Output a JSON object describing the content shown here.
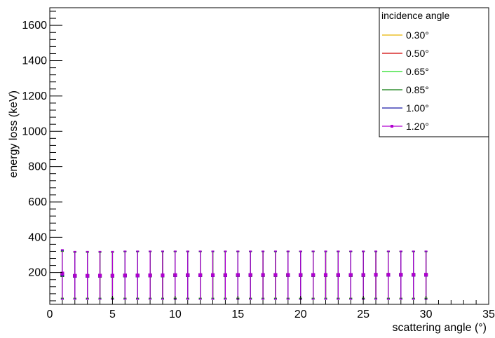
{
  "chart_data": {
    "type": "scatter",
    "xlabel": "scattering angle (°)",
    "ylabel": "energy loss (keV)",
    "xlim": [
      0,
      35
    ],
    "ylim": [
      20,
      1700
    ],
    "x_ticks": [
      "0",
      "5",
      "10",
      "15",
      "20",
      "25",
      "30",
      "35"
    ],
    "y_ticks": [
      "200",
      "400",
      "600",
      "800",
      "1000",
      "1200",
      "1400",
      "1600"
    ],
    "legend": {
      "title": "incidence angle",
      "placement": "top-right",
      "entries": [
        "0.30°",
        "0.50°",
        "0.65°",
        "0.85°",
        "1.00°",
        "1.20°"
      ]
    },
    "x": [
      1,
      2,
      3,
      4,
      5,
      6,
      7,
      8,
      9,
      10,
      11,
      12,
      13,
      14,
      15,
      16,
      17,
      18,
      19,
      20,
      21,
      22,
      23,
      24,
      25,
      26,
      27,
      28,
      29,
      30
    ],
    "series": [
      {
        "name": "0.30°",
        "color": "#e8b400",
        "y": [
          185,
          181,
          181,
          182,
          182,
          183,
          183,
          184,
          184,
          185,
          185,
          185,
          185,
          185,
          186,
          186,
          186,
          186,
          186,
          186,
          186,
          186,
          186,
          186,
          186,
          187,
          187,
          187,
          187,
          187
        ],
        "y_low": [
          55,
          55,
          55,
          55,
          55,
          55,
          55,
          55,
          55,
          55,
          55,
          55,
          55,
          55,
          55,
          55,
          55,
          55,
          55,
          55,
          55,
          55,
          55,
          55,
          55,
          55,
          55,
          55,
          55,
          55
        ],
        "y_high": [
          320,
          315,
          315,
          315,
          315,
          318,
          318,
          318,
          318,
          318,
          318,
          318,
          318,
          318,
          318,
          318,
          318,
          318,
          318,
          318,
          318,
          318,
          318,
          318,
          318,
          318,
          318,
          318,
          318,
          318
        ]
      },
      {
        "name": "0.50°",
        "color": "#d00000",
        "y": [
          185,
          181,
          181,
          182,
          182,
          183,
          183,
          184,
          184,
          185,
          185,
          185,
          185,
          185,
          186,
          186,
          186,
          186,
          186,
          186,
          186,
          186,
          186,
          186,
          186,
          187,
          187,
          187,
          187,
          187
        ],
        "y_low": [
          55,
          55,
          55,
          55,
          55,
          55,
          55,
          55,
          55,
          55,
          55,
          55,
          55,
          55,
          55,
          55,
          55,
          55,
          55,
          55,
          55,
          55,
          55,
          55,
          55,
          55,
          55,
          55,
          55,
          55
        ],
        "y_high": [
          320,
          315,
          315,
          315,
          315,
          318,
          318,
          318,
          318,
          318,
          318,
          318,
          318,
          318,
          318,
          318,
          318,
          318,
          318,
          318,
          318,
          318,
          318,
          318,
          318,
          318,
          318,
          318,
          318,
          318
        ]
      },
      {
        "name": "0.65°",
        "color": "#22dd22",
        "y": [
          185,
          181,
          181,
          182,
          182,
          183,
          183,
          184,
          184,
          185,
          185,
          185,
          185,
          185,
          186,
          186,
          186,
          186,
          186,
          186,
          186,
          186,
          186,
          186,
          186,
          187,
          187,
          187,
          187,
          187
        ],
        "y_low": [
          55,
          55,
          55,
          55,
          55,
          55,
          55,
          55,
          55,
          55,
          55,
          55,
          55,
          55,
          55,
          55,
          55,
          55,
          55,
          55,
          55,
          55,
          55,
          55,
          55,
          55,
          55,
          55,
          55,
          55
        ],
        "y_high": [
          320,
          315,
          315,
          315,
          315,
          318,
          318,
          318,
          318,
          318,
          318,
          318,
          318,
          318,
          318,
          318,
          318,
          318,
          318,
          318,
          318,
          318,
          318,
          318,
          318,
          318,
          318,
          318,
          318,
          318
        ]
      },
      {
        "name": "0.85°",
        "color": "#0a7a0a",
        "y": [
          185,
          181,
          181,
          182,
          182,
          183,
          183,
          184,
          184,
          185,
          185,
          185,
          185,
          185,
          186,
          186,
          186,
          186,
          186,
          186,
          186,
          186,
          186,
          186,
          186,
          187,
          187,
          187,
          187,
          187
        ],
        "y_low": [
          52,
          52,
          52,
          52,
          52,
          52,
          52,
          52,
          52,
          52,
          52,
          52,
          52,
          52,
          52,
          52,
          52,
          52,
          52,
          52,
          52,
          52,
          52,
          52,
          52,
          52,
          52,
          52,
          52,
          52
        ],
        "y_high": [
          322,
          317,
          317,
          317,
          317,
          320,
          320,
          320,
          320,
          320,
          320,
          320,
          320,
          320,
          320,
          320,
          320,
          320,
          320,
          320,
          320,
          320,
          320,
          320,
          320,
          320,
          320,
          320,
          320,
          320
        ]
      },
      {
        "name": "1.00°",
        "color": "#1a1aa8",
        "y": [
          190,
          181,
          181,
          182,
          182,
          183,
          183,
          184,
          184,
          185,
          185,
          185,
          185,
          185,
          186,
          186,
          186,
          186,
          186,
          186,
          186,
          186,
          186,
          186,
          186,
          187,
          187,
          187,
          187,
          187
        ],
        "y_low": [
          50,
          50,
          50,
          50,
          50,
          50,
          50,
          50,
          50,
          50,
          50,
          50,
          50,
          50,
          50,
          50,
          50,
          50,
          50,
          50,
          50,
          50,
          50,
          50,
          50,
          50,
          50,
          50,
          50,
          50
        ],
        "y_high": [
          325,
          318,
          318,
          318,
          318,
          320,
          320,
          320,
          320,
          320,
          320,
          320,
          320,
          320,
          320,
          320,
          320,
          320,
          320,
          320,
          320,
          320,
          320,
          320,
          320,
          320,
          320,
          320,
          320,
          320
        ]
      },
      {
        "name": "1.20°",
        "color": "#b000d0",
        "y": [
          195,
          182,
          182,
          183,
          183,
          184,
          184,
          185,
          185,
          186,
          186,
          186,
          186,
          186,
          187,
          187,
          187,
          187,
          187,
          187,
          187,
          187,
          187,
          187,
          187,
          188,
          188,
          188,
          188,
          188
        ],
        "y_low": [
          48,
          48,
          48,
          48,
          48,
          48,
          48,
          48,
          48,
          48,
          48,
          48,
          48,
          48,
          48,
          48,
          48,
          48,
          48,
          48,
          48,
          48,
          48,
          48,
          48,
          48,
          48,
          48,
          48,
          48
        ],
        "y_high": [
          330,
          320,
          320,
          320,
          320,
          322,
          322,
          322,
          322,
          322,
          322,
          322,
          322,
          322,
          322,
          322,
          322,
          322,
          322,
          322,
          322,
          322,
          322,
          322,
          322,
          322,
          322,
          322,
          322,
          322
        ]
      }
    ]
  }
}
